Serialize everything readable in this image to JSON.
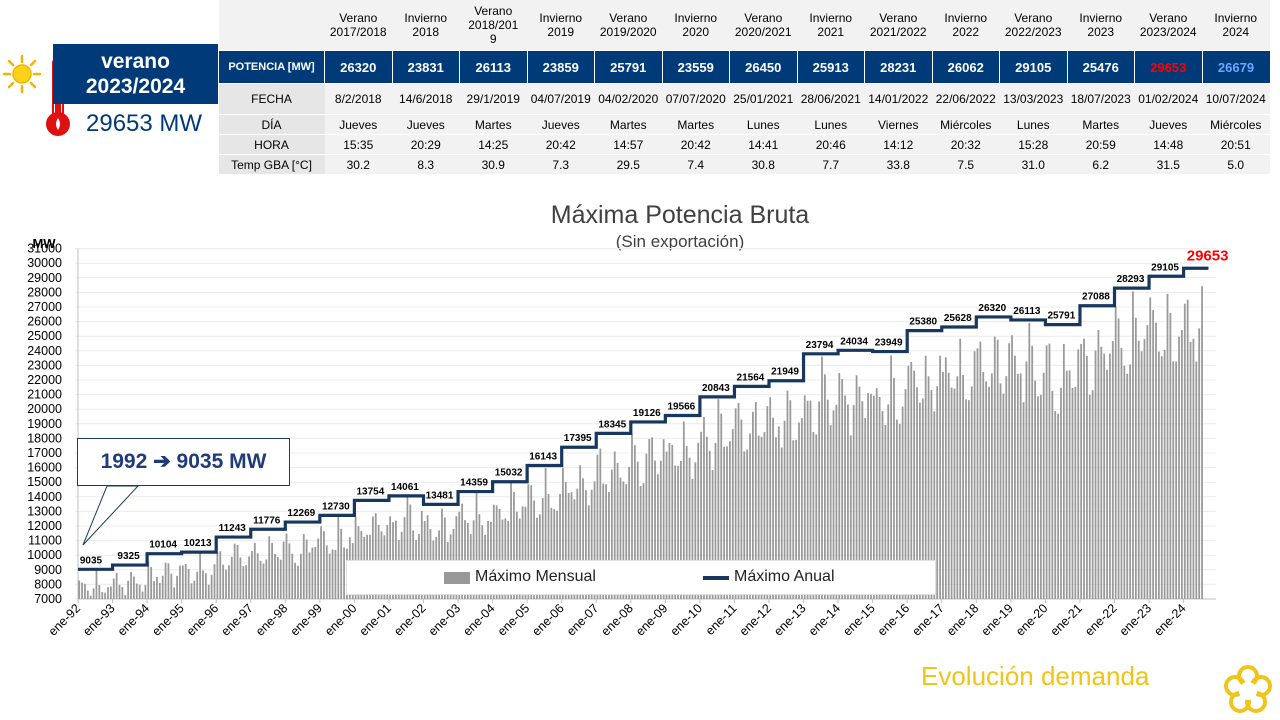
{
  "badge": {
    "season_line1": "verano",
    "season_line2": "2023/2024",
    "power": "29653 MW"
  },
  "table": {
    "label_potencia": "POTENCIA [MW]",
    "label_fecha": "FECHA",
    "label_dia": "DÍA",
    "label_hora": "HORA",
    "label_temp": "Temp GBA [°C]",
    "columns": [
      {
        "h1": "Verano",
        "h2": "2017/2018",
        "h3": "",
        "potencia": "26320",
        "fecha": "8/2/2018",
        "dia": "Jueves",
        "hora": "15:35",
        "temp": "30.2"
      },
      {
        "h1": "Invierno",
        "h2": "2018",
        "h3": "",
        "potencia": "23831",
        "fecha": "14/6/2018",
        "dia": "Jueves",
        "hora": "20:29",
        "temp": "8.3"
      },
      {
        "h1": "Verano",
        "h2": "2018/201",
        "h3": "9",
        "potencia": "26113",
        "fecha": "29/1/2019",
        "dia": "Martes",
        "hora": "14:25",
        "temp": "30.9"
      },
      {
        "h1": "Invierno",
        "h2": "2019",
        "h3": "",
        "potencia": "23859",
        "fecha": "04/07/2019",
        "dia": "Jueves",
        "hora": "20:42",
        "temp": "7.3"
      },
      {
        "h1": "Verano",
        "h2": "2019/2020",
        "h3": "",
        "potencia": "25791",
        "fecha": "04/02/2020",
        "dia": "Martes",
        "hora": "14:57",
        "temp": "29.5"
      },
      {
        "h1": "Invierno",
        "h2": "2020",
        "h3": "",
        "potencia": "23559",
        "fecha": "07/07/2020",
        "dia": "Martes",
        "hora": "20:42",
        "temp": "7.4"
      },
      {
        "h1": "Verano",
        "h2": "2020/2021",
        "h3": "",
        "potencia": "26450",
        "fecha": "25/01/2021",
        "dia": "Lunes",
        "hora": "14:41",
        "temp": "30.8"
      },
      {
        "h1": "Invierno",
        "h2": "2021",
        "h3": "",
        "potencia": "25913",
        "fecha": "28/06/2021",
        "dia": "Lunes",
        "hora": "20:46",
        "temp": "7.7"
      },
      {
        "h1": "Verano",
        "h2": "2021/2022",
        "h3": "",
        "potencia": "28231",
        "fecha": "14/01/2022",
        "dia": "Viernes",
        "hora": "14:12",
        "temp": "33.8"
      },
      {
        "h1": "Invierno",
        "h2": "2022",
        "h3": "",
        "potencia": "26062",
        "fecha": "22/06/2022",
        "dia": "Miércoles",
        "hora": "20:32",
        "temp": "7.5"
      },
      {
        "h1": "Verano",
        "h2": "2022/2023",
        "h3": "",
        "potencia": "29105",
        "fecha": "13/03/2023",
        "dia": "Lunes",
        "hora": "15:28",
        "temp": "31.0"
      },
      {
        "h1": "Invierno",
        "h2": "2023",
        "h3": "",
        "potencia": "25476",
        "fecha": "18/07/2023",
        "dia": "Martes",
        "hora": "20:59",
        "temp": "6.2"
      },
      {
        "h1": "Verano",
        "h2": "2023/2024",
        "h3": "",
        "potencia": "29653",
        "fecha": "01/02/2024",
        "dia": "Jueves",
        "hora": "14:48",
        "temp": "31.5",
        "highlight": "red"
      },
      {
        "h1": "Invierno",
        "h2": "2024",
        "h3": "",
        "potencia": "26679",
        "fecha": "10/07/2024",
        "dia": "Miércoles",
        "hora": "20:51",
        "temp": "5.0",
        "highlight": "blue"
      }
    ]
  },
  "callout": "1992 ➔ 9035 MW",
  "legend": {
    "monthly": "Máximo Mensual",
    "annual": "Máximo Anual"
  },
  "footer": "Evolución demanda",
  "colors": {
    "navy": "#003a78",
    "bar": "#9a9a9a",
    "line": "#17375e",
    "red": "#ff0000",
    "blue": "#6ea6ff",
    "footer": "#f0c419"
  },
  "chart_data": {
    "type": "bar+step-line",
    "title": "Máxima Potencia Bruta",
    "subtitle": "(Sin exportación)",
    "ylabel": "MW",
    "ylim": [
      7000,
      31000
    ],
    "yticks": [
      7000,
      8000,
      9000,
      10000,
      11000,
      12000,
      13000,
      14000,
      15000,
      16000,
      17000,
      18000,
      19000,
      20000,
      21000,
      22000,
      23000,
      24000,
      25000,
      26000,
      27000,
      28000,
      29000,
      30000,
      31000
    ],
    "xticks": [
      "ene-92",
      "ene-93",
      "ene-94",
      "ene-95",
      "ene-96",
      "ene-97",
      "ene-98",
      "ene-99",
      "ene-00",
      "ene-01",
      "ene-02",
      "ene-03",
      "ene-04",
      "ene-05",
      "ene-06",
      "ene-07",
      "ene-08",
      "ene-09",
      "ene-10",
      "ene-11",
      "ene-12",
      "ene-13",
      "ene-14",
      "ene-15",
      "ene-16",
      "ene-17",
      "ene-18",
      "ene-19",
      "ene-20",
      "ene-21",
      "ene-22",
      "ene-23",
      "ene-24"
    ],
    "annual_max": {
      "name": "Máximo Anual",
      "years": [
        1992,
        1993,
        1994,
        1995,
        1996,
        1997,
        1998,
        1999,
        2000,
        2001,
        2002,
        2003,
        2004,
        2005,
        2006,
        2007,
        2008,
        2009,
        2010,
        2011,
        2012,
        2013,
        2014,
        2015,
        2016,
        2017,
        2018,
        2019,
        2020,
        2021,
        2022,
        2023,
        2024
      ],
      "values": [
        9035,
        9325,
        10104,
        10213,
        11243,
        11776,
        12269,
        12730,
        13754,
        14061,
        13481,
        14359,
        15032,
        16143,
        17395,
        18345,
        19126,
        19566,
        20843,
        21564,
        21949,
        23794,
        24034,
        23949,
        25380,
        25628,
        26320,
        26113,
        25791,
        27088,
        28293,
        29105,
        29653
      ]
    },
    "monthly_max": {
      "name": "Máximo Mensual",
      "months": "1992-01 to 2024-07 (monthly, approximate)"
    },
    "highlight_label": "29653"
  }
}
